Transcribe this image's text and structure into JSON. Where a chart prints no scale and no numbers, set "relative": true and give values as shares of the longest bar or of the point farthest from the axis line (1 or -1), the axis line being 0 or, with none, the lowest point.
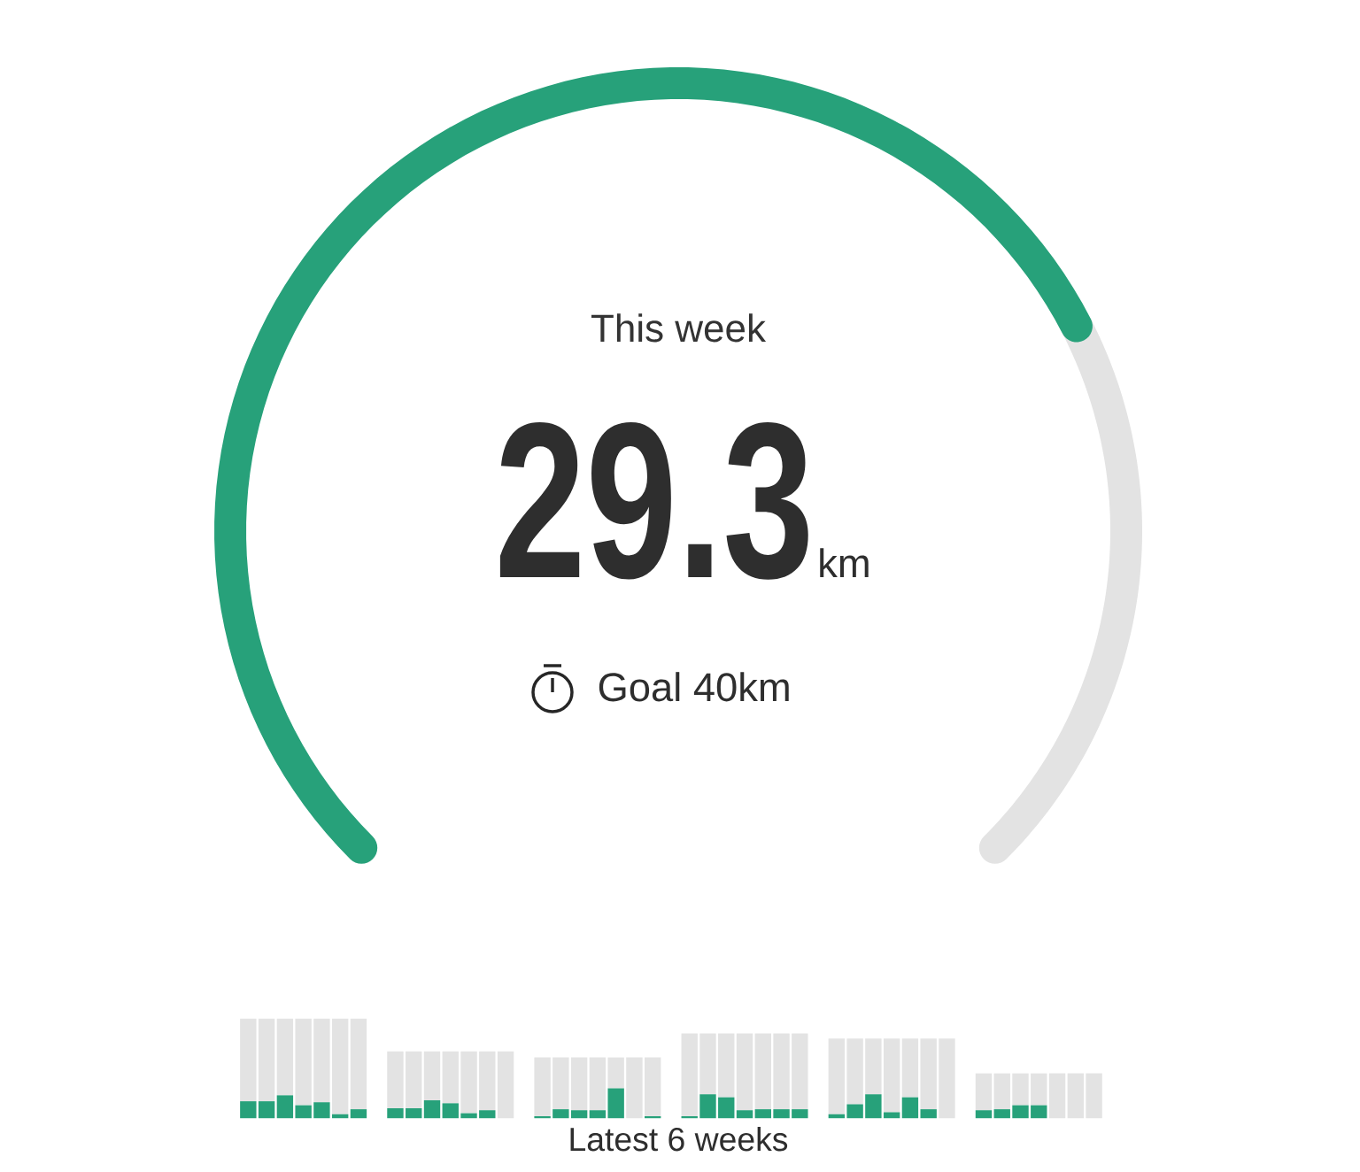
{
  "chart_data": [
    {
      "type": "donut",
      "title": "This week",
      "categories": [
        null,
        null
      ],
      "values": [
        73.25,
        26.75
      ],
      "colors": [
        "#27a17a",
        "#e3e3e3"
      ],
      "annotations": [
        "29.3",
        "km",
        "Goal  40km"
      ]
    },
    {
      "type": "bar",
      "stacked": true,
      "relative": true,
      "xlabel": "Latest 6 weeks",
      "categories": [
        null,
        null,
        null,
        null,
        null,
        null,
        null,
        null,
        null,
        null,
        null,
        null,
        null,
        null,
        null,
        null,
        null,
        null,
        null,
        null,
        null,
        null,
        null,
        null,
        null,
        null,
        null,
        null,
        null,
        null,
        null,
        null,
        null,
        null,
        null,
        null,
        null,
        null,
        null,
        null,
        null,
        null
      ],
      "series": [
        {
          "color": "#27a17a",
          "values": [
            0.17,
            0.17,
            0.23,
            0.13,
            0.16,
            0.04,
            0.09,
            0.1,
            0.1,
            0.18,
            0.15,
            0.05,
            0.08,
            0,
            0.02,
            0.09,
            0.08,
            0.08,
            0.3,
            0,
            0.02,
            0.02,
            0.24,
            0.21,
            0.08,
            0.09,
            0.09,
            0.09,
            0.04,
            0.14,
            0.24,
            0.06,
            0.21,
            0.09,
            0,
            0.08,
            0.09,
            0.13,
            0.13,
            0,
            0,
            0
          ]
        },
        {
          "color": "#e3e3e3",
          "values": [
            0.83,
            0.83,
            0.77,
            0.87,
            0.84,
            0.96,
            0.91,
            0.57,
            0.57,
            0.49,
            0.52,
            0.62,
            0.59,
            0.67,
            0.59,
            0.52,
            0.53,
            0.53,
            0.31,
            0.61,
            0.59,
            0.83,
            0.61,
            0.64,
            0.77,
            0.76,
            0.76,
            0.76,
            0.76,
            0.66,
            0.56,
            0.74,
            0.59,
            0.71,
            0.8,
            0.37,
            0.36,
            0.32,
            0.32,
            0.45,
            0.45,
            0.45
          ]
        }
      ]
    }
  ]
}
